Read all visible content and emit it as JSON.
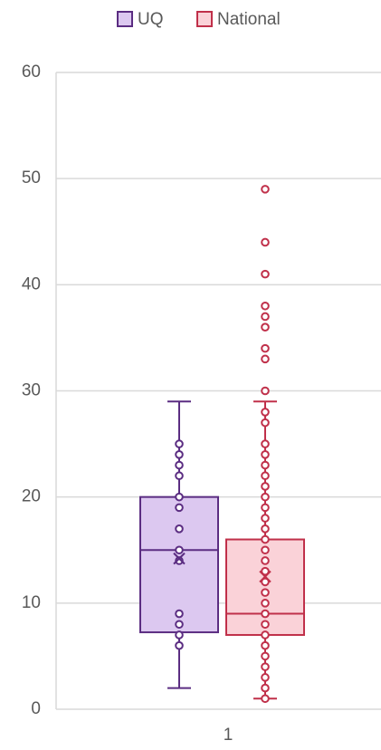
{
  "chart_data": {
    "type": "box",
    "categories": [
      "1"
    ],
    "ylim": [
      0,
      60
    ],
    "yticks": [
      0,
      10,
      20,
      30,
      40,
      50,
      60
    ],
    "grid": true,
    "legend": "top",
    "series": [
      {
        "name": "UQ",
        "color": "#5b2d82",
        "fill": "#dcc8f0",
        "whisker_low": 2,
        "q1": 7.25,
        "median": 15,
        "q3": 20,
        "whisker_high": 29,
        "mean": 14.2,
        "points": [
          25,
          24,
          23,
          22,
          20,
          19,
          17,
          15,
          14,
          9,
          8,
          7,
          6
        ]
      },
      {
        "name": "National",
        "color": "#c0304a",
        "fill": "#fad2d8",
        "whisker_low": 1,
        "q1": 7,
        "median": 9,
        "q3": 16,
        "whisker_high": 29,
        "mean": 12.5,
        "points": [
          49,
          44,
          41,
          38,
          37,
          36,
          34,
          33,
          30,
          28,
          27,
          25,
          24,
          23,
          22,
          21,
          20,
          19,
          18,
          17,
          16,
          15,
          14,
          13,
          12,
          11,
          10,
          9,
          8,
          7,
          6,
          5,
          4,
          3,
          2,
          1
        ]
      }
    ]
  }
}
